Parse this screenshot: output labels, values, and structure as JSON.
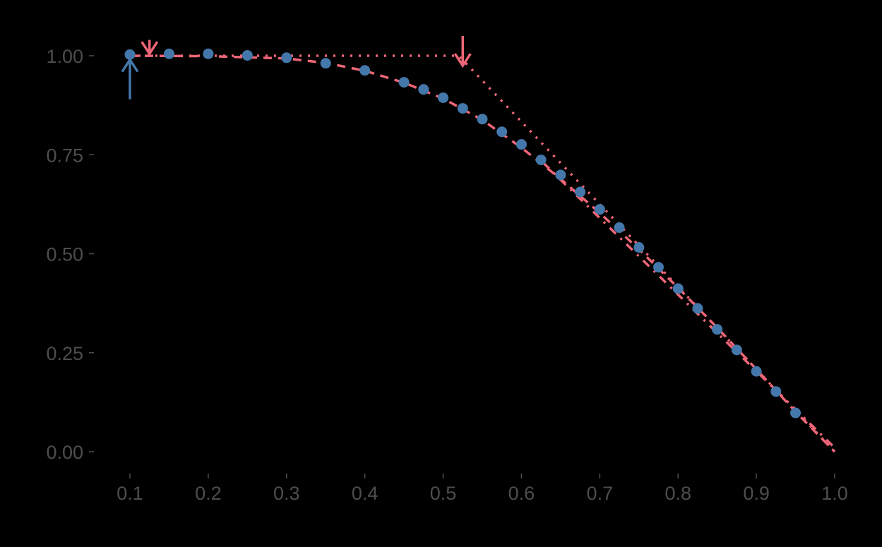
{
  "chart_data": {
    "type": "line",
    "title": "",
    "xlabel": "",
    "ylabel": "",
    "xlim": [
      0.1,
      1.0
    ],
    "ylim": [
      0.0,
      1.0
    ],
    "grid": false,
    "legend": null,
    "background": "#000000",
    "x_ticks": [
      "0.1",
      "0.2",
      "0.3",
      "0.4",
      "0.5",
      "0.6",
      "0.7",
      "0.8",
      "0.9",
      "1.0"
    ],
    "y_ticks": [
      "0.00",
      "0.25",
      "0.50",
      "0.75",
      "1.00"
    ],
    "colors": {
      "points": "#4477AA",
      "lines": "#EE6677",
      "axis_text": "#4d4d4d"
    },
    "series": [
      {
        "name": "observed points",
        "style": "points",
        "color": "#4477AA",
        "x": [
          0.1,
          0.15,
          0.2,
          0.25,
          0.3,
          0.35,
          0.4,
          0.45,
          0.475,
          0.5,
          0.525,
          0.55,
          0.575,
          0.6,
          0.625,
          0.65,
          0.675,
          0.7,
          0.725,
          0.75,
          0.775,
          0.8,
          0.825,
          0.85,
          0.875,
          0.9,
          0.925,
          0.95
        ],
        "y": [
          1.003,
          1.005,
          1.005,
          1.001,
          0.995,
          0.981,
          0.963,
          0.933,
          0.915,
          0.894,
          0.867,
          0.84,
          0.808,
          0.776,
          0.737,
          0.699,
          0.656,
          0.612,
          0.566,
          0.516,
          0.466,
          0.412,
          0.362,
          0.309,
          0.257,
          0.203,
          0.152,
          0.098
        ]
      },
      {
        "name": "dashed smooth fit",
        "style": "dashed",
        "color": "#EE6677",
        "x": [
          0.1,
          0.2,
          0.3,
          0.35,
          0.4,
          0.45,
          0.5,
          0.55,
          0.6,
          0.65,
          0.7,
          0.75,
          0.8,
          0.85,
          0.9,
          0.95,
          1.0
        ],
        "y": [
          1.0,
          0.999,
          0.993,
          0.982,
          0.962,
          0.932,
          0.892,
          0.838,
          0.768,
          0.689,
          0.603,
          0.511,
          0.414,
          0.313,
          0.208,
          0.101,
          0.0
        ]
      },
      {
        "name": "dotted piecewise",
        "style": "dotted",
        "color": "#EE6677",
        "x": [
          0.1,
          0.52,
          1.0
        ],
        "y": [
          1.0,
          1.0,
          0.0
        ]
      },
      {
        "name": "dot-dash linear",
        "style": "dotdash",
        "color": "#EE6677",
        "x": [
          0.62,
          1.0
        ],
        "y": [
          0.745,
          0.01
        ]
      }
    ],
    "annotations": [
      {
        "type": "arrow-up",
        "x": 0.1,
        "y_from": 0.89,
        "y_to": 0.99,
        "color": "#4477AA"
      },
      {
        "type": "arrow-down",
        "x": 0.125,
        "y_from": 1.04,
        "y_to": 1.005,
        "color": "#EE6677"
      },
      {
        "type": "arrow-down",
        "x": 0.525,
        "y_from": 1.05,
        "y_to": 0.975,
        "color": "#EE6677"
      }
    ]
  }
}
